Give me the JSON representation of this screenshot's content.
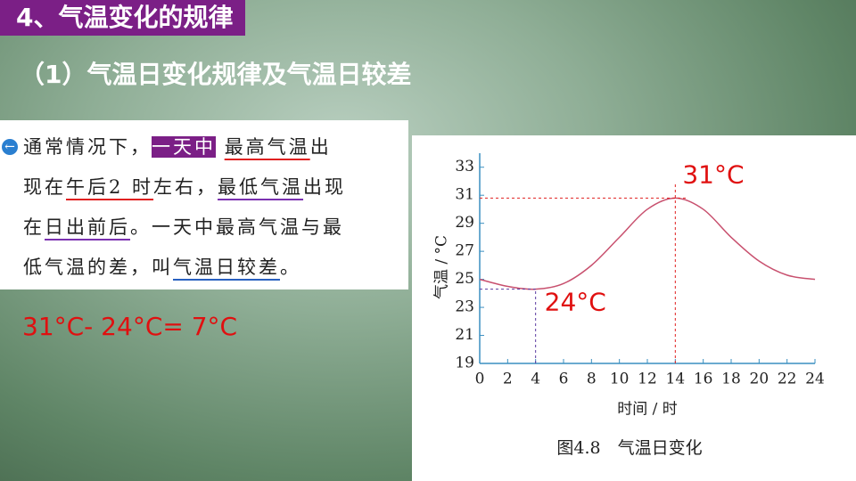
{
  "header": {
    "title": "4、气温变化的规律",
    "subtitle": "（1）气温日变化规律及气温日较差"
  },
  "text_box": {
    "lines": [
      [
        "通常情况下，",
        "一天中",
        "最高气温",
        "出"
      ],
      [
        "现在",
        "午后2 时",
        "左右，",
        "最低气温",
        "出现"
      ],
      [
        "在",
        "日出前后",
        "。一天中最高气温与最"
      ],
      [
        "低气温的差，叫",
        "气温日较差",
        "。"
      ]
    ]
  },
  "formula": "31°C- 24°C=  7°C",
  "chart_data": {
    "type": "line",
    "caption": "图4.8　气温日变化",
    "x_label": "时间 / 时",
    "y_label": "气温 / °C",
    "x": [
      0,
      2,
      4,
      6,
      8,
      10,
      12,
      14,
      16,
      18,
      20,
      22,
      24
    ],
    "series": [
      {
        "name": "气温",
        "color": "#c8506e",
        "values": [
          25.0,
          24.5,
          24.3,
          24.7,
          26.0,
          28.0,
          30.0,
          30.8,
          30.0,
          28.0,
          26.3,
          25.3,
          25.0
        ]
      }
    ],
    "xlim": [
      0,
      24
    ],
    "xticks": [
      0,
      2,
      4,
      6,
      8,
      10,
      12,
      14,
      16,
      18,
      20,
      22,
      24
    ],
    "ylim": [
      19,
      34
    ],
    "yticks": [
      19,
      21,
      23,
      25,
      27,
      29,
      31,
      33
    ],
    "annotations": [
      "31°C",
      "24°C"
    ]
  }
}
